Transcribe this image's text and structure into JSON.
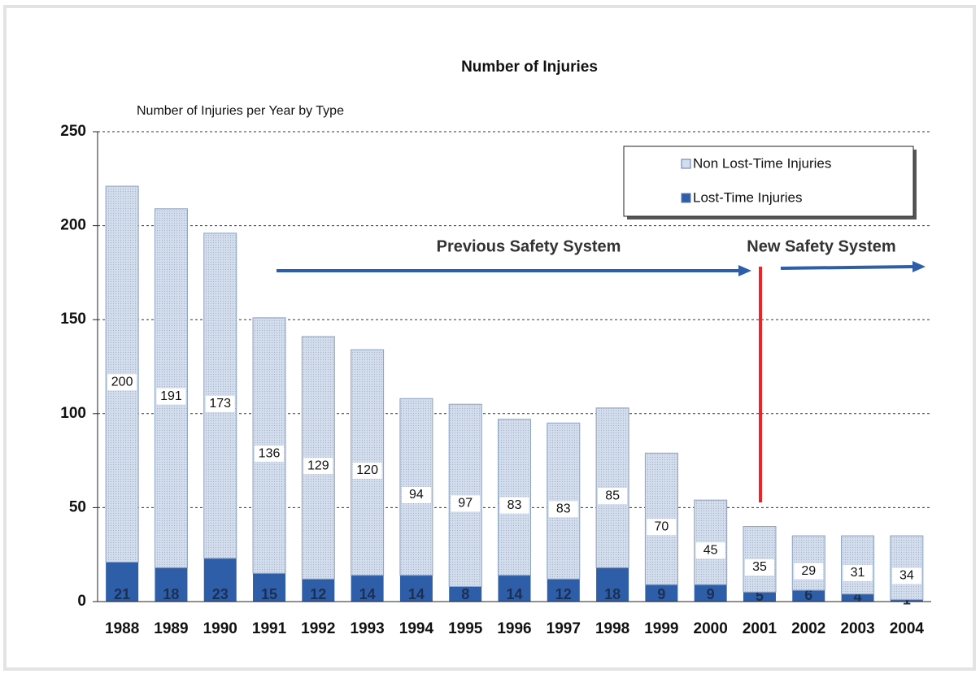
{
  "chart_data": {
    "type": "stacked_bar",
    "title": "Number of Injuries",
    "subtitle": "Number of Injuries per Year by Type",
    "categories": [
      "1988",
      "1989",
      "1990",
      "1991",
      "1992",
      "1993",
      "1994",
      "1995",
      "1996",
      "1997",
      "1998",
      "1999",
      "2000",
      "2001",
      "2002",
      "2003",
      "2004"
    ],
    "series": [
      {
        "name": "Lost-Time Injuries",
        "color": "#2f5ea8",
        "values": [
          21,
          18,
          23,
          15,
          12,
          14,
          14,
          8,
          14,
          12,
          18,
          9,
          9,
          5,
          6,
          4,
          1
        ]
      },
      {
        "name": "Non Lost-Time Injuries",
        "color": "#d3ddeb",
        "values": [
          200,
          191,
          173,
          136,
          129,
          120,
          94,
          97,
          83,
          83,
          85,
          70,
          45,
          35,
          29,
          31,
          34
        ]
      }
    ],
    "annotations": [
      "Previous Safety System",
      "New Safety System"
    ],
    "ylim": [
      0,
      250
    ],
    "yticks": [
      0,
      50,
      100,
      150,
      200,
      250
    ],
    "grid": true,
    "legend": "upper right"
  }
}
